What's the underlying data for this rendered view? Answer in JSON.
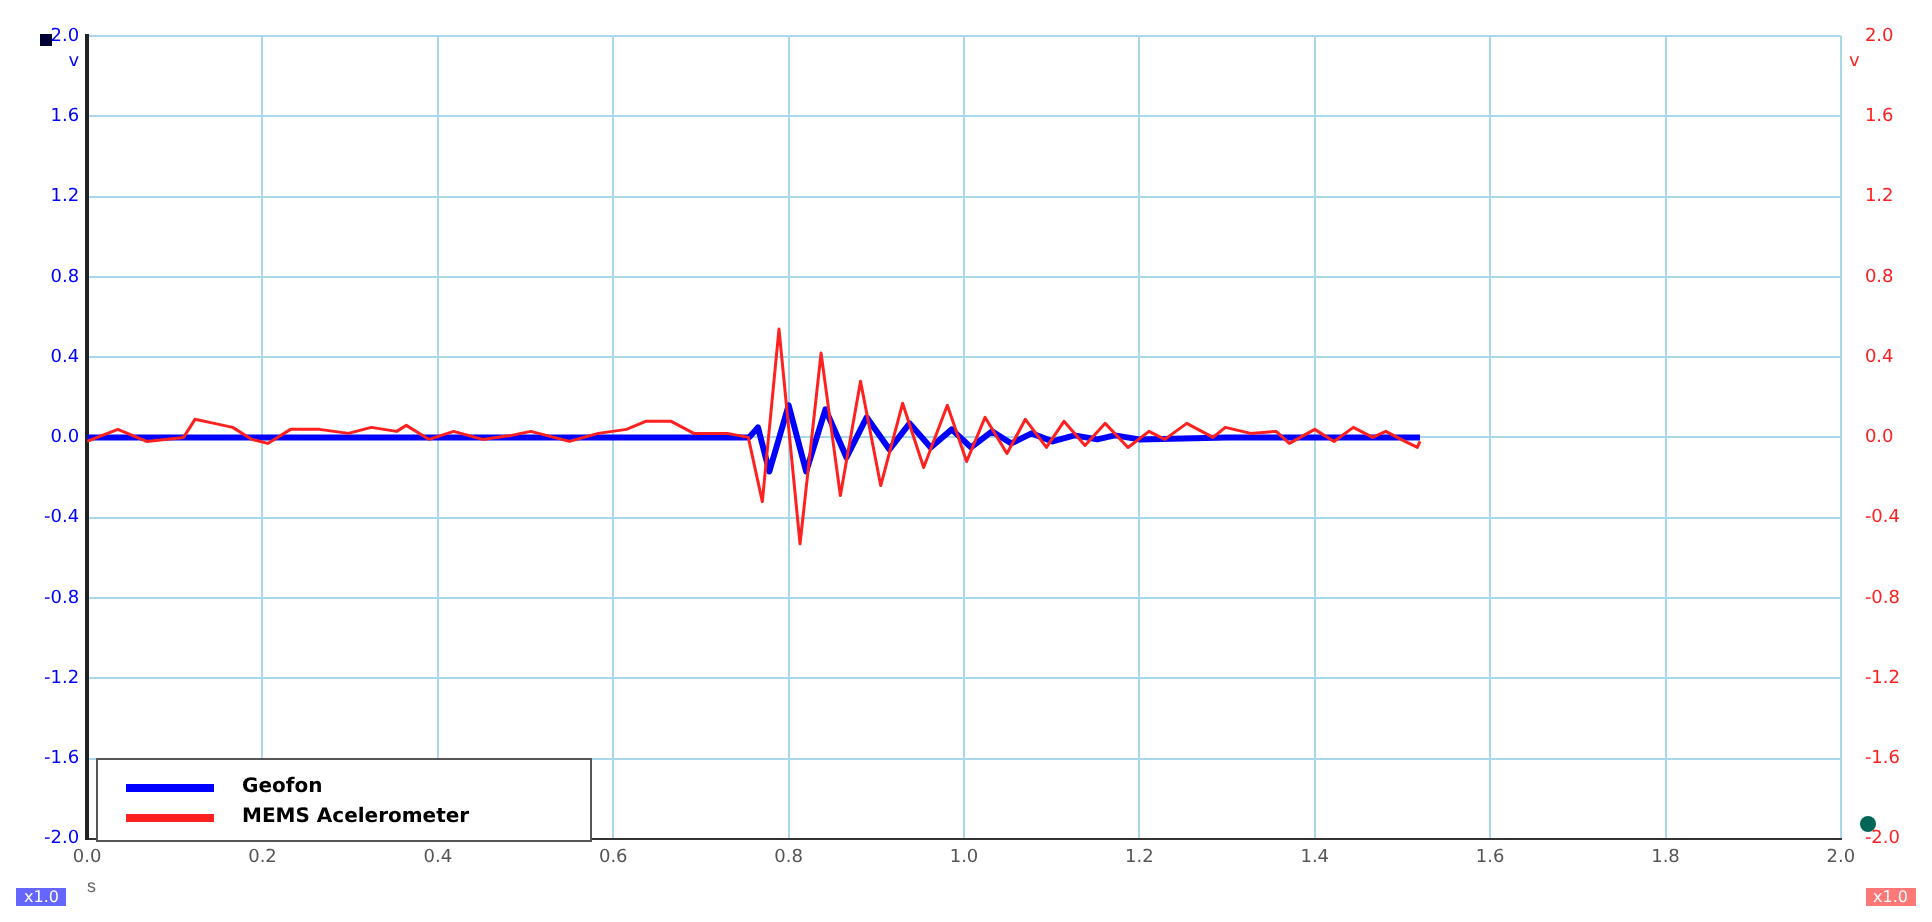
{
  "chart_data": {
    "type": "line",
    "xlabel": "s",
    "ylabel": "v",
    "y2label": "v",
    "xlim": [
      0,
      2
    ],
    "xticks": [
      {
        "value": 0,
        "label": "0.0"
      },
      {
        "value": 0.2,
        "label": "0.2"
      },
      {
        "value": 0.4,
        "label": "0.4"
      },
      {
        "value": 0.6,
        "label": "0.6"
      },
      {
        "value": 0.8,
        "label": "0.8"
      },
      {
        "value": 1,
        "label": "1.0"
      },
      {
        "value": 1.2,
        "label": "1.2"
      },
      {
        "value": 1.4,
        "label": "1.4"
      },
      {
        "value": 1.6,
        "label": "1.6"
      },
      {
        "value": 1.8,
        "label": "1.8"
      },
      {
        "value": 2,
        "label": "2.0"
      }
    ],
    "ylim": [
      -2,
      2
    ],
    "yticks": [
      {
        "value": -2,
        "label": "-2.0"
      },
      {
        "value": -1.6,
        "label": "-1.6"
      },
      {
        "value": -1.2,
        "label": "-1.2"
      },
      {
        "value": -0.8,
        "label": "-0.8"
      },
      {
        "value": -0.4,
        "label": "-0.4"
      },
      {
        "value": 0,
        "label": "0.0"
      },
      {
        "value": 0.4,
        "label": "0.4"
      },
      {
        "value": 0.8,
        "label": "0.8"
      },
      {
        "value": 1.2,
        "label": "1.2"
      },
      {
        "value": 1.6,
        "label": "1.6"
      },
      {
        "value": 2,
        "label": "2.0"
      }
    ],
    "y2lim": [
      -2,
      2
    ],
    "y2ticks": [
      {
        "value": -2,
        "label": "-2.0"
      },
      {
        "value": -1.6,
        "label": "-1.6"
      },
      {
        "value": -1.2,
        "label": "-1.2"
      },
      {
        "value": -0.8,
        "label": "-0.8"
      },
      {
        "value": -0.4,
        "label": "-0.4"
      },
      {
        "value": 0,
        "label": "0.0"
      },
      {
        "value": 0.4,
        "label": "0.4"
      },
      {
        "value": 0.8,
        "label": "0.8"
      },
      {
        "value": 1.2,
        "label": "1.2"
      },
      {
        "value": 1.6,
        "label": "1.6"
      },
      {
        "value": 2,
        "label": "2.0"
      }
    ],
    "grid": true,
    "legend": "bottom left",
    "marker": "none",
    "line_style": "solid",
    "annotations": [
      "x1.0",
      "x1.0"
    ],
    "series": [
      {
        "name": "Geofon",
        "color": "#0000ff",
        "axis": "y",
        "x": [
          0,
          0.3,
          0.6,
          0.755,
          0.765,
          0.778,
          0.8,
          0.82,
          0.842,
          0.866,
          0.889,
          0.915,
          0.938,
          0.962,
          0.986,
          1.008,
          1.032,
          1.054,
          1.077,
          1.101,
          1.126,
          1.152,
          1.172,
          1.2,
          1.3,
          1.4,
          1.52
        ],
        "values": [
          0,
          0,
          0,
          0,
          0.05,
          -0.17,
          0.16,
          -0.17,
          0.14,
          -0.1,
          0.1,
          -0.06,
          0.07,
          -0.05,
          0.04,
          -0.05,
          0.03,
          -0.03,
          0.02,
          -0.02,
          0.01,
          -0.01,
          0.01,
          -0.01,
          0,
          0,
          0
        ]
      },
      {
        "name": "MEMS Acelerometer",
        "color": "#ff2020",
        "axis": "y2",
        "x": [
          0,
          0.035,
          0.068,
          0.11,
          0.123,
          0.145,
          0.166,
          0.188,
          0.206,
          0.232,
          0.265,
          0.298,
          0.324,
          0.353,
          0.364,
          0.39,
          0.418,
          0.451,
          0.484,
          0.506,
          0.55,
          0.583,
          0.615,
          0.637,
          0.666,
          0.692,
          0.73,
          0.754,
          0.77,
          0.789,
          0.813,
          0.837,
          0.859,
          0.882,
          0.905,
          0.93,
          0.954,
          0.981,
          1.003,
          1.024,
          1.049,
          1.07,
          1.094,
          1.114,
          1.138,
          1.161,
          1.187,
          1.211,
          1.229,
          1.254,
          1.284,
          1.298,
          1.327,
          1.356,
          1.371,
          1.4,
          1.422,
          1.444,
          1.466,
          1.481,
          1.503,
          1.517,
          1.52
        ],
        "values": [
          -0.02,
          0.04,
          -0.02,
          0,
          0.09,
          0.07,
          0.05,
          -0.01,
          -0.03,
          0.04,
          0.04,
          0.02,
          0.05,
          0.03,
          0.06,
          -0.01,
          0.03,
          -0.01,
          0.01,
          0.03,
          -0.02,
          0.02,
          0.04,
          0.08,
          0.08,
          0.02,
          0.02,
          0,
          -0.32,
          0.54,
          -0.53,
          0.42,
          -0.29,
          0.28,
          -0.24,
          0.17,
          -0.15,
          0.16,
          -0.12,
          0.1,
          -0.08,
          0.09,
          -0.05,
          0.08,
          -0.04,
          0.07,
          -0.05,
          0.03,
          -0.01,
          0.07,
          0,
          0.05,
          0.02,
          0.03,
          -0.03,
          0.04,
          -0.02,
          0.05,
          0,
          0.03,
          -0.02,
          -0.05,
          -0.02
        ]
      }
    ]
  }
}
